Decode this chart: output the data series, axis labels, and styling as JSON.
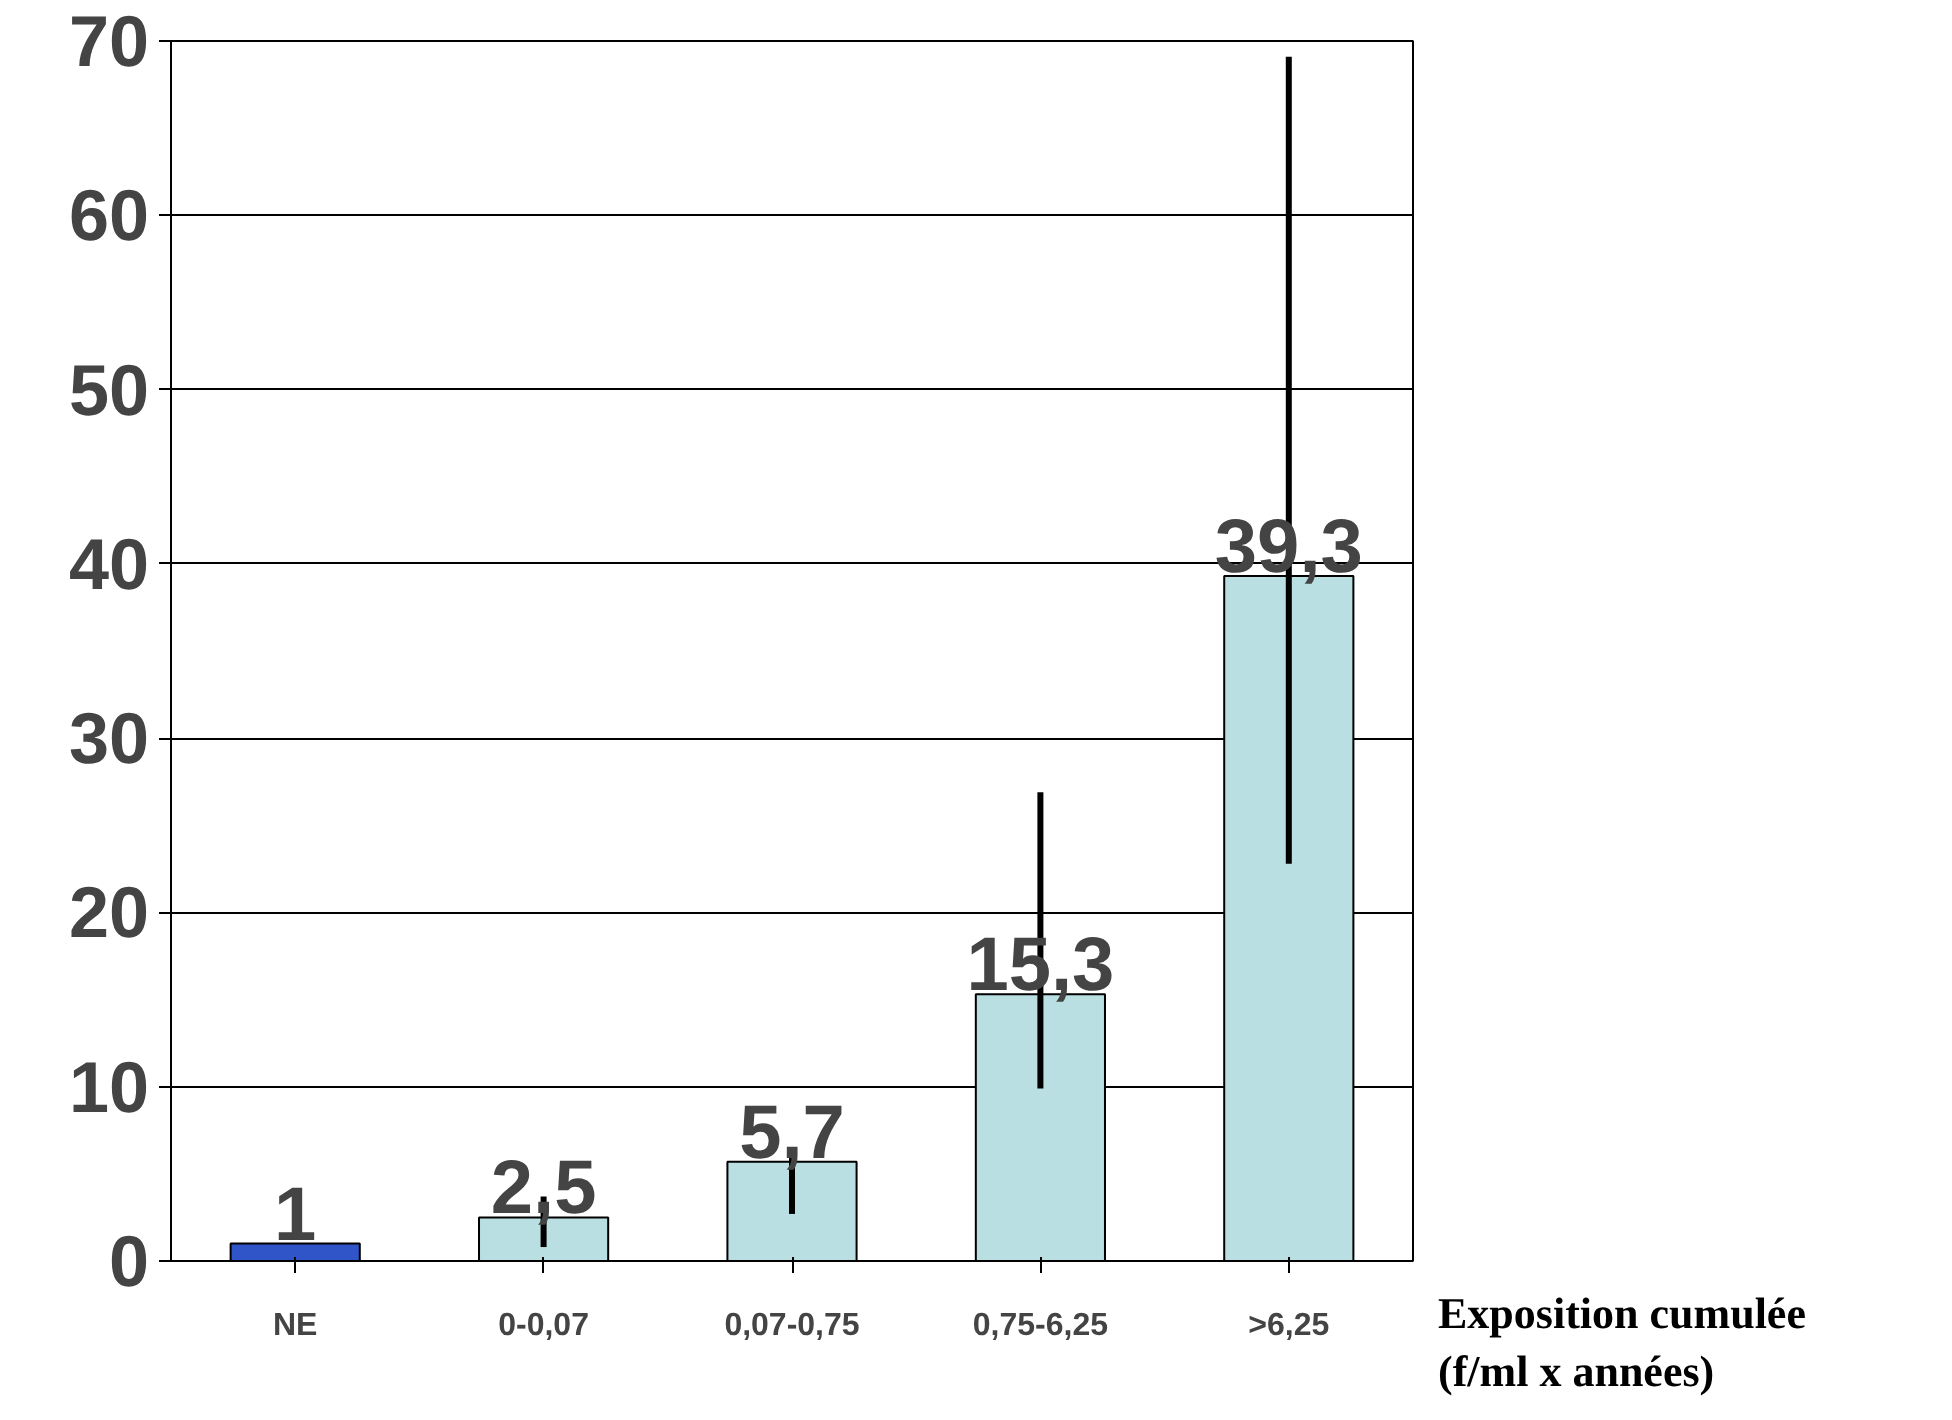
{
  "chart_data": {
    "type": "bar",
    "categories": [
      "NE",
      "0-0,07",
      "0,07-0,75",
      "0,75-6,25",
      ">6,25"
    ],
    "values": [
      1,
      2.5,
      5.7,
      15.3,
      39.3
    ],
    "colors": [
      "#2f55c8",
      "#b9dfe2",
      "#b9dfe2",
      "#b9dfe2",
      "#b9dfe2"
    ],
    "value_labels": [
      "1",
      "2,5",
      "5,7",
      "15,3",
      "39,3"
    ],
    "errors": [
      null,
      [
        0.8,
        3.7
      ],
      [
        2.7,
        6.2
      ],
      [
        9.9,
        26.9
      ],
      [
        22.8,
        69.1
      ]
    ],
    "xlabel": "Exposition cumulée\n(f/ml x années)",
    "ylim": [
      0,
      70
    ],
    "yticks": [
      0,
      10,
      20,
      30,
      40,
      50,
      60,
      70
    ],
    "grid": "y"
  }
}
